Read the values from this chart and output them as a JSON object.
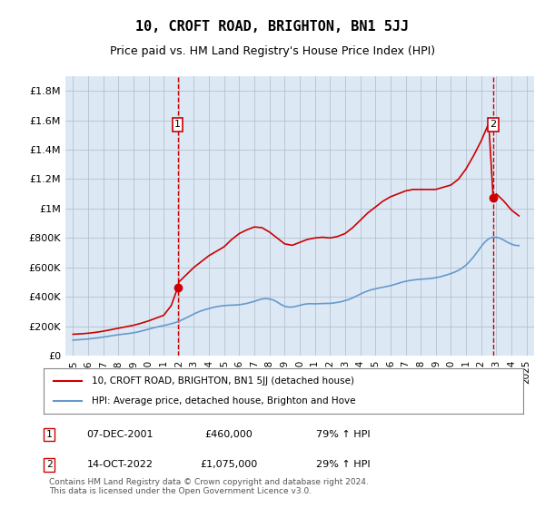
{
  "title": "10, CROFT ROAD, BRIGHTON, BN1 5JJ",
  "subtitle": "Price paid vs. HM Land Registry's House Price Index (HPI)",
  "legend_line1": "10, CROFT ROAD, BRIGHTON, BN1 5JJ (detached house)",
  "legend_line2": "HPI: Average price, detached house, Brighton and Hove",
  "footer": "Contains HM Land Registry data © Crown copyright and database right 2024.\nThis data is licensed under the Open Government Licence v3.0.",
  "yticks": [
    0,
    200000,
    400000,
    600000,
    800000,
    1000000,
    1200000,
    1400000,
    1600000,
    1800000
  ],
  "ytick_labels": [
    "£0",
    "£200K",
    "£400K",
    "£600K",
    "£800K",
    "£1M",
    "£1.2M",
    "£1.4M",
    "£1.6M",
    "£1.8M"
  ],
  "xlim_start": 1994.5,
  "xlim_end": 2025.5,
  "ylim_top": 1900000,
  "background_color": "#dce9f5",
  "line_color_red": "#cc0000",
  "line_color_blue": "#6699cc",
  "marker1_x": 2001.92,
  "marker1_y": 460000,
  "marker1_label": "1",
  "marker1_date": "07-DEC-2001",
  "marker1_price": "£460,000",
  "marker1_hpi": "79% ↑ HPI",
  "marker2_x": 2022.79,
  "marker2_y": 1075000,
  "marker2_label": "2",
  "marker2_date": "14-OCT-2022",
  "marker2_price": "£1,075,000",
  "marker2_hpi": "29% ↑ HPI",
  "hpi_years": [
    1995,
    1995.25,
    1995.5,
    1995.75,
    1996,
    1996.25,
    1996.5,
    1996.75,
    1997,
    1997.25,
    1997.5,
    1997.75,
    1998,
    1998.25,
    1998.5,
    1998.75,
    1999,
    1999.25,
    1999.5,
    1999.75,
    2000,
    2000.25,
    2000.5,
    2000.75,
    2001,
    2001.25,
    2001.5,
    2001.75,
    2002,
    2002.25,
    2002.5,
    2002.75,
    2003,
    2003.25,
    2003.5,
    2003.75,
    2004,
    2004.25,
    2004.5,
    2004.75,
    2005,
    2005.25,
    2005.5,
    2005.75,
    2006,
    2006.25,
    2006.5,
    2006.75,
    2007,
    2007.25,
    2007.5,
    2007.75,
    2008,
    2008.25,
    2008.5,
    2008.75,
    2009,
    2009.25,
    2009.5,
    2009.75,
    2010,
    2010.25,
    2010.5,
    2010.75,
    2011,
    2011.25,
    2011.5,
    2011.75,
    2012,
    2012.25,
    2012.5,
    2012.75,
    2013,
    2013.25,
    2013.5,
    2013.75,
    2014,
    2014.25,
    2014.5,
    2014.75,
    2015,
    2015.25,
    2015.5,
    2015.75,
    2016,
    2016.25,
    2016.5,
    2016.75,
    2017,
    2017.25,
    2017.5,
    2017.75,
    2018,
    2018.25,
    2018.5,
    2018.75,
    2019,
    2019.25,
    2019.5,
    2019.75,
    2020,
    2020.25,
    2020.5,
    2020.75,
    2021,
    2021.25,
    2021.5,
    2021.75,
    2022,
    2022.25,
    2022.5,
    2022.75,
    2023,
    2023.25,
    2023.5,
    2023.75,
    2024,
    2024.25,
    2024.5
  ],
  "hpi_values": [
    105000,
    107000,
    109000,
    111000,
    113000,
    116000,
    119000,
    122000,
    126000,
    130000,
    134000,
    138000,
    142000,
    145000,
    148000,
    151000,
    155000,
    160000,
    166000,
    173000,
    180000,
    187000,
    193000,
    199000,
    204000,
    210000,
    217000,
    224000,
    233000,
    245000,
    257000,
    270000,
    283000,
    295000,
    305000,
    313000,
    320000,
    327000,
    333000,
    337000,
    340000,
    342000,
    343000,
    344000,
    346000,
    350000,
    355000,
    362000,
    369000,
    378000,
    385000,
    388000,
    385000,
    378000,
    365000,
    348000,
    335000,
    330000,
    330000,
    335000,
    342000,
    348000,
    352000,
    353000,
    352000,
    353000,
    354000,
    355000,
    355000,
    358000,
    362000,
    367000,
    374000,
    382000,
    393000,
    405000,
    418000,
    430000,
    440000,
    448000,
    454000,
    460000,
    465000,
    470000,
    476000,
    483000,
    491000,
    499000,
    505000,
    510000,
    514000,
    517000,
    519000,
    521000,
    523000,
    526000,
    530000,
    535000,
    542000,
    550000,
    558000,
    568000,
    580000,
    596000,
    616000,
    642000,
    672000,
    706000,
    742000,
    773000,
    795000,
    805000,
    805000,
    798000,
    785000,
    770000,
    758000,
    750000,
    748000
  ],
  "red_years": [
    1995,
    1995.5,
    1996,
    1996.5,
    1997,
    1997.5,
    1998,
    1998.5,
    1999,
    1999.5,
    2000,
    2000.5,
    2001,
    2001.5,
    2001.92,
    2002,
    2003,
    2004,
    2005,
    2005.5,
    2006,
    2006.5,
    2007,
    2007.5,
    2008,
    2008.5,
    2009,
    2009.5,
    2010,
    2010.5,
    2011,
    2011.5,
    2012,
    2012.5,
    2013,
    2013.5,
    2014,
    2014.5,
    2015,
    2015.5,
    2016,
    2016.5,
    2017,
    2017.5,
    2018,
    2018.5,
    2019,
    2019.5,
    2020,
    2020.5,
    2021,
    2021.5,
    2022,
    2022.5,
    2022.79,
    2023,
    2023.5,
    2024,
    2024.5
  ],
  "red_values": [
    145000,
    148000,
    152000,
    158000,
    166000,
    176000,
    186000,
    196000,
    206000,
    220000,
    236000,
    255000,
    274000,
    340000,
    460000,
    500000,
    600000,
    680000,
    740000,
    790000,
    830000,
    855000,
    875000,
    870000,
    840000,
    800000,
    760000,
    750000,
    770000,
    790000,
    800000,
    805000,
    800000,
    810000,
    830000,
    870000,
    920000,
    970000,
    1010000,
    1050000,
    1080000,
    1100000,
    1120000,
    1130000,
    1130000,
    1130000,
    1130000,
    1145000,
    1160000,
    1200000,
    1270000,
    1360000,
    1460000,
    1580000,
    1075000,
    1100000,
    1050000,
    990000,
    950000
  ]
}
